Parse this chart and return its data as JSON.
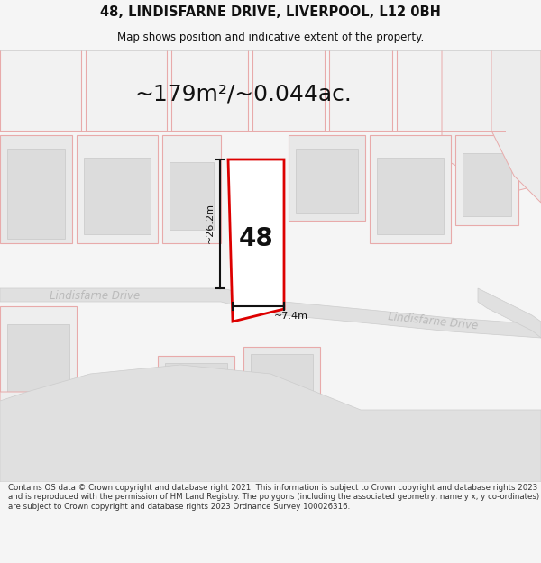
{
  "title_line1": "48, LINDISFARNE DRIVE, LIVERPOOL, L12 0BH",
  "title_line2": "Map shows position and indicative extent of the property.",
  "area_text": "~179m²/~0.044ac.",
  "number_label": "48",
  "dim_h": "~26.2m",
  "dim_w": "~7.4m",
  "road_label1": "Lindisfarne Drive",
  "road_label2": "Lindisfarne Drive",
  "footer_text": "Contains OS data © Crown copyright and database right 2021. This information is subject to Crown copyright and database rights 2023 and is reproduced with the permission of HM Land Registry. The polygons (including the associated geometry, namely x, y co-ordinates) are subject to Crown copyright and database rights 2023 Ordnance Survey 100026316.",
  "bg_color": "#f5f5f5",
  "map_bg": "#ffffff",
  "plot_fill": "#ececec",
  "plot_edge": "#e8aaaa",
  "highlight_color": "#dd0000",
  "road_fill": "#e0e0e0",
  "road_edge": "#cccccc",
  "dim_line_color": "#111111",
  "text_dark": "#111111",
  "text_road": "#bbbbbb",
  "header_sep": "#dddddd"
}
